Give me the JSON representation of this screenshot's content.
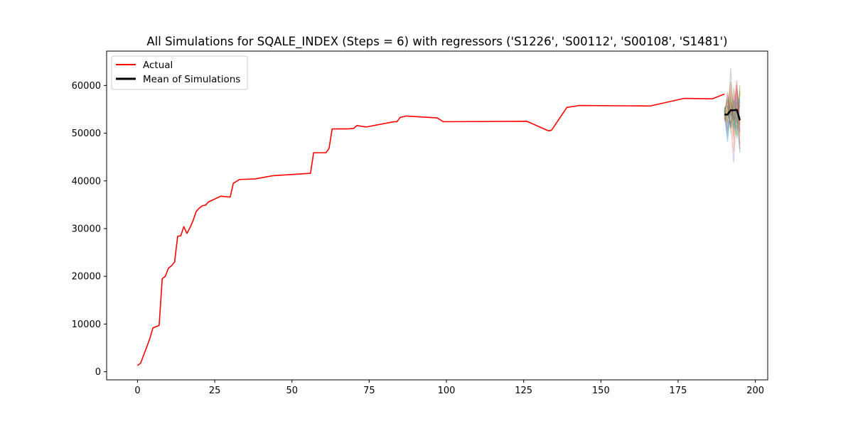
{
  "chart_data": {
    "type": "line",
    "title": "All Simulations for SQALE_INDEX (Steps = 6) with regressors ('S1226', 'S00112', 'S00108', 'S1481')",
    "xlabel": "",
    "ylabel": "",
    "xlim": [
      -10,
      204
    ],
    "ylim": [
      -1700,
      67200
    ],
    "xticks": [
      0,
      25,
      50,
      75,
      100,
      125,
      150,
      175,
      200
    ],
    "yticks": [
      0,
      10000,
      20000,
      30000,
      40000,
      50000,
      60000
    ],
    "grid": false,
    "legend_position": "top-left",
    "legend": [
      {
        "label": "Actual",
        "color": "#ff0000"
      },
      {
        "label": "Mean of Simulations",
        "color": "#000000"
      }
    ],
    "series": [
      {
        "name": "Actual",
        "color": "#ff0000",
        "points": [
          [
            0,
            1300
          ],
          [
            1,
            1800
          ],
          [
            3,
            5200
          ],
          [
            4,
            7000
          ],
          [
            5,
            9200
          ],
          [
            7,
            9700
          ],
          [
            8,
            19500
          ],
          [
            9,
            20000
          ],
          [
            10,
            21700
          ],
          [
            11,
            22200
          ],
          [
            12,
            23000
          ],
          [
            13,
            28400
          ],
          [
            14,
            28500
          ],
          [
            15,
            30400
          ],
          [
            16,
            29000
          ],
          [
            17,
            30200
          ],
          [
            18,
            31700
          ],
          [
            19,
            33600
          ],
          [
            20,
            34300
          ],
          [
            21,
            34800
          ],
          [
            22,
            34900
          ],
          [
            23,
            35600
          ],
          [
            27,
            36800
          ],
          [
            30,
            36600
          ],
          [
            31,
            39500
          ],
          [
            33,
            40300
          ],
          [
            38,
            40400
          ],
          [
            44,
            41100
          ],
          [
            56,
            41600
          ],
          [
            57,
            45900
          ],
          [
            61,
            45900
          ],
          [
            62,
            46800
          ],
          [
            63,
            50900
          ],
          [
            68,
            50900
          ],
          [
            70,
            51000
          ],
          [
            71,
            51600
          ],
          [
            74,
            51300
          ],
          [
            83,
            52400
          ],
          [
            84,
            52400
          ],
          [
            85,
            53300
          ],
          [
            87,
            53600
          ],
          [
            97,
            53200
          ],
          [
            99,
            52400
          ],
          [
            126,
            52500
          ],
          [
            133,
            50500
          ],
          [
            134,
            50600
          ],
          [
            139,
            55400
          ],
          [
            143,
            55800
          ],
          [
            166,
            55700
          ],
          [
            177,
            57300
          ],
          [
            186,
            57200
          ],
          [
            190,
            58200
          ]
        ]
      },
      {
        "name": "Mean of Simulations",
        "color": "#000000",
        "points": [
          [
            190,
            53900
          ],
          [
            191,
            53900
          ],
          [
            192,
            54800
          ],
          [
            193,
            54800
          ],
          [
            194,
            54900
          ],
          [
            195,
            52700
          ]
        ]
      }
    ],
    "simulations": {
      "x": [
        190,
        191,
        192,
        193,
        194,
        195
      ],
      "colors": [
        "#1f77b4",
        "#ff7f0e",
        "#2ca02c",
        "#d62728",
        "#9467bd",
        "#8c564b",
        "#e377c2",
        "#7f7f7f",
        "#bcbd22",
        "#17becf"
      ],
      "runs": [
        [
          53900,
          52500,
          57800,
          51200,
          56300,
          54900
        ],
        [
          52800,
          55100,
          59600,
          46200,
          55700,
          49300
        ],
        [
          55200,
          51900,
          53400,
          57100,
          52600,
          58500
        ],
        [
          54100,
          56800,
          51700,
          55300,
          60100,
          51600
        ],
        [
          53500,
          49700,
          56200,
          53800,
          50400,
          56800
        ],
        [
          55600,
          54300,
          52100,
          59400,
          54700,
          47800
        ],
        [
          52400,
          57900,
          54900,
          48700,
          58300,
          53100
        ],
        [
          54700,
          50600,
          63600,
          52900,
          53600,
          55800
        ],
        [
          53200,
          55800,
          49800,
          56600,
          51300,
          59700
        ],
        [
          55000,
          53300,
          58400,
          50300,
          57400,
          50600
        ],
        [
          54400,
          48200,
          55300,
          54600,
          52100,
          57300
        ],
        [
          52900,
          56300,
          50900,
          58200,
          55900,
          52400
        ],
        [
          55400,
          52700,
          57200,
          51900,
          49600,
          58900
        ],
        [
          53700,
          58600,
          53700,
          55100,
          61000,
          46600
        ],
        [
          54800,
          51100,
          52600,
          43800,
          56800,
          54300
        ],
        [
          53000,
          54800,
          60800,
          53400,
          50900,
          60100
        ],
        [
          55300,
          50200,
          54400,
          57700,
          54200,
          49900
        ],
        [
          54000,
          57200,
          51300,
          52200,
          58900,
          55400
        ],
        [
          53300,
          53600,
          56900,
          55800,
          53100,
          51800
        ],
        [
          54600,
          49200,
          55800,
          50800,
          57600,
          56300
        ],
        [
          55100,
          55700,
          51100,
          56900,
          52800,
          45900
        ],
        [
          53600,
          52100,
          58900,
          49400,
          55300,
          58100
        ],
        [
          54300,
          57500,
          53900,
          54200,
          48900,
          53500
        ],
        [
          52700,
          54100,
          56500,
          52600,
          59300,
          50200
        ]
      ]
    }
  }
}
